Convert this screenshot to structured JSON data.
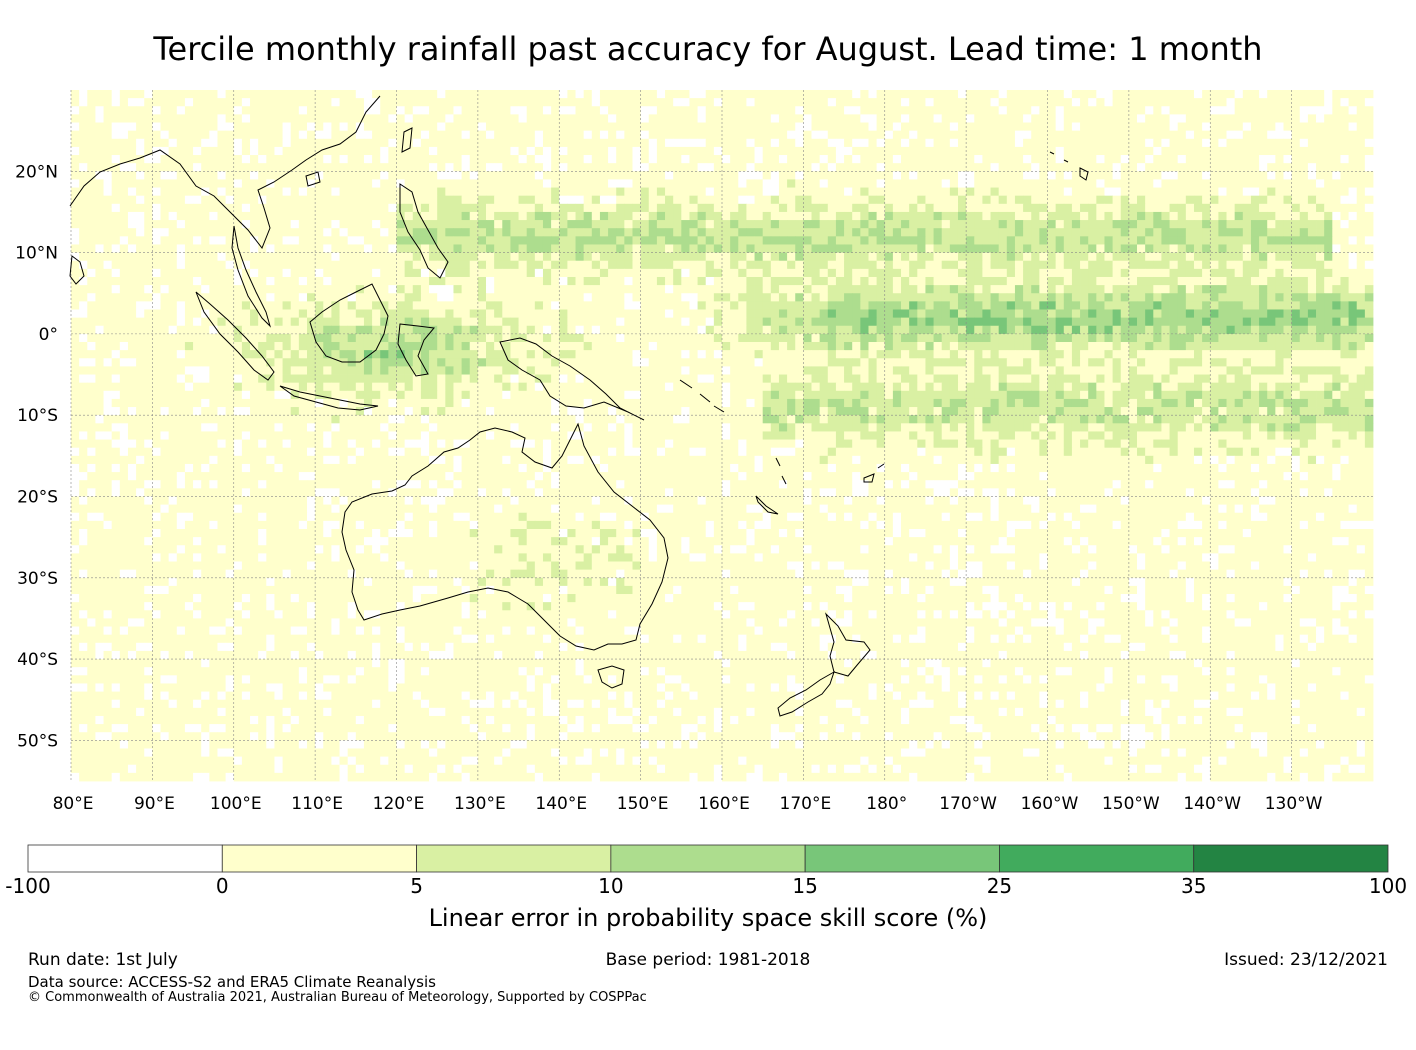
{
  "title": "Tercile monthly rainfall past accuracy for August. Lead time: 1 month",
  "map": {
    "lon_labels": [
      "80°E",
      "90°E",
      "100°E",
      "110°E",
      "120°E",
      "130°E",
      "140°E",
      "150°E",
      "160°E",
      "170°E",
      "180°",
      "170°W",
      "160°W",
      "150°W",
      "140°W",
      "130°W"
    ],
    "lat_labels": [
      "20°N",
      "10°N",
      "0°",
      "10°S",
      "20°S",
      "30°S",
      "40°S",
      "50°S"
    ],
    "lon_range": [
      80,
      240
    ],
    "lat_range": [
      -55,
      30
    ],
    "grid": true,
    "coastline_color": "#000000"
  },
  "colorbar": {
    "labels": [
      "-100",
      "0",
      "5",
      "10",
      "15",
      "25",
      "35",
      "100"
    ],
    "colors": [
      "#ffffff",
      "#ffffcc",
      "#d9f0a3",
      "#addd8e",
      "#78c679",
      "#41ab5d",
      "#238443"
    ],
    "title": "Linear error in probability space skill score (%)"
  },
  "footer": {
    "run_date": "Run date: 1st July",
    "base_period": "Base period: 1981-2018",
    "issued": "Issued: 23/12/2021",
    "source": "Data source: ACCESS-S2 and ERA5 Climate Reanalysis",
    "copyright": "© Commonwealth of Australia 2021, Australian Bureau of Meteorology, Supported by COSPPac"
  }
}
